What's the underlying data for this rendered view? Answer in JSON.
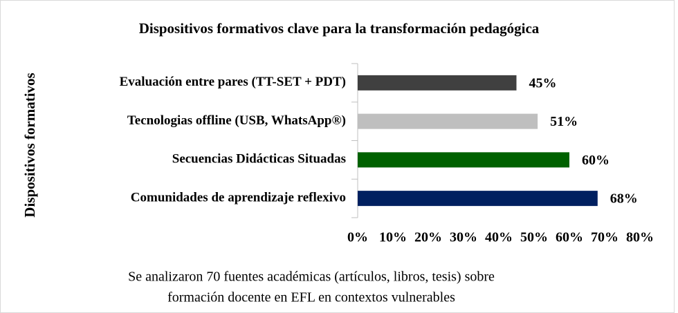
{
  "chart_data": {
    "type": "barh",
    "title": "Dispositivos formativos clave para la transformación pedagógica",
    "ylabel": "Dispositivos formativos",
    "categories": [
      "Evaluación entre pares (TT-SET + PDT)",
      "Tecnologias offline (USB, WhatsApp®)",
      "Secuencias Didácticas Situadas",
      "Comunidades de aprendizaje reflexivo"
    ],
    "values": [
      45,
      51,
      60,
      68
    ],
    "value_labels": [
      "45%",
      "51%",
      "60%",
      "68%"
    ],
    "colors": [
      "#404040",
      "#bfbfbf",
      "#006100",
      "#002060"
    ],
    "xlim": [
      0,
      80
    ],
    "xticks": [
      {
        "value": 0,
        "label": "0%"
      },
      {
        "value": 10,
        "label": "10%"
      },
      {
        "value": 20,
        "label": "20%"
      },
      {
        "value": 30,
        "label": "30%"
      },
      {
        "value": 40,
        "label": "40%"
      },
      {
        "value": 50,
        "label": "50%"
      },
      {
        "value": 60,
        "label": "60%"
      },
      {
        "value": 70,
        "label": "70%"
      },
      {
        "value": 80,
        "label": "80%"
      }
    ],
    "grid": false,
    "note": [
      "Se analizaron 70 fuentes académicas (artículos, libros, tesis) sobre",
      "formación docente en EFL en contextos vulnerables"
    ]
  }
}
